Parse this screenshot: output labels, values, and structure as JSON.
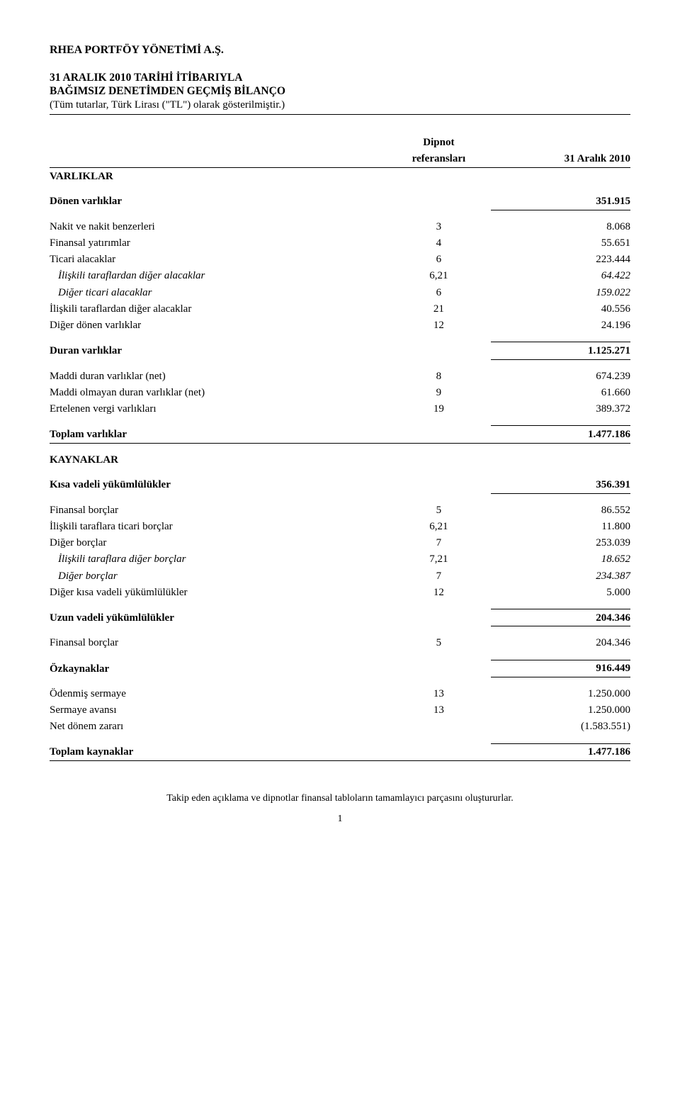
{
  "company": "RHEA PORTFÖY YÖNETİMİ A.Ş.",
  "title_line1": "31 ARALIK 2010 TARİHİ İTİBARIYLA",
  "title_line2": "BAĞIMSIZ DENETİMDEN GEÇMİŞ BİLANÇO",
  "title_sub": "(Tüm tutarlar, Türk Lirası (\"TL\") olarak gösterilmiştir.)",
  "header": {
    "ref_line1": "Dipnot",
    "ref_line2": "referansları",
    "val": "31 Aralık 2010"
  },
  "sections": {
    "varliklar": "VARLIKLAR",
    "donen_varliklar": {
      "label": "Dönen varlıklar",
      "val": "351.915"
    },
    "rows_donen": [
      {
        "label": "Nakit ve nakit benzerleri",
        "ref": "3",
        "val": "8.068",
        "indent": 0
      },
      {
        "label": "Finansal yatırımlar",
        "ref": "4",
        "val": "55.651",
        "indent": 0
      },
      {
        "label": "Ticari alacaklar",
        "ref": "6",
        "val": "223.444",
        "indent": 0
      },
      {
        "label": "İlişkili taraflardan diğer alacaklar",
        "ref": "6,21",
        "val": "64.422",
        "indent": 1,
        "italic": true
      },
      {
        "label": "Diğer ticari alacaklar",
        "ref": "6",
        "val": "159.022",
        "indent": 1,
        "italic": true
      },
      {
        "label": "İlişkili taraflardan diğer alacaklar",
        "ref": "21",
        "val": "40.556",
        "indent": 0
      },
      {
        "label": "Diğer dönen varlıklar",
        "ref": "12",
        "val": "24.196",
        "indent": 0
      }
    ],
    "duran_varliklar": {
      "label": "Duran varlıklar",
      "val": "1.125.271"
    },
    "rows_duran": [
      {
        "label": "Maddi duran varlıklar (net)",
        "ref": "8",
        "val": "674.239"
      },
      {
        "label": "Maddi olmayan duran varlıklar (net)",
        "ref": "9",
        "val": "61.660"
      },
      {
        "label": "Ertelenen vergi varlıkları",
        "ref": "19",
        "val": "389.372"
      }
    ],
    "toplam_varliklar": {
      "label": "Toplam varlıklar",
      "val": "1.477.186"
    },
    "kaynaklar": "KAYNAKLAR",
    "kisa_vadeli": {
      "label": "Kısa vadeli yükümlülükler",
      "val": "356.391"
    },
    "rows_kisa": [
      {
        "label": "Finansal borçlar",
        "ref": "5",
        "val": "86.552",
        "indent": 0
      },
      {
        "label": "İlişkili taraflara ticari borçlar",
        "ref": "6,21",
        "val": "11.800",
        "indent": 0
      },
      {
        "label": "Diğer borçlar",
        "ref": "7",
        "val": "253.039",
        "indent": 0
      },
      {
        "label": "İlişkili taraflara diğer borçlar",
        "ref": "7,21",
        "val": "18.652",
        "indent": 1,
        "italic": true
      },
      {
        "label": "Diğer borçlar",
        "ref": "7",
        "val": "234.387",
        "indent": 1,
        "italic": true
      },
      {
        "label": "Diğer kısa vadeli yükümlülükler",
        "ref": "12",
        "val": "5.000",
        "indent": 0
      }
    ],
    "uzun_vadeli": {
      "label": "Uzun vadeli yükümlülükler",
      "val": "204.346"
    },
    "rows_uzun": [
      {
        "label": "Finansal borçlar",
        "ref": "5",
        "val": "204.346"
      }
    ],
    "ozkaynaklar": {
      "label": "Özkaynaklar",
      "val": "916.449"
    },
    "rows_ozkaynak": [
      {
        "label": "Ödenmiş sermaye",
        "ref": "13",
        "val": "1.250.000"
      },
      {
        "label": "Sermaye avansı",
        "ref": "13",
        "val": "1.250.000"
      },
      {
        "label": "Net dönem zararı",
        "ref": "",
        "val": "(1.583.551)"
      }
    ],
    "toplam_kaynaklar": {
      "label": "Toplam kaynaklar",
      "val": "1.477.186"
    }
  },
  "footer": "Takip eden açıklama ve dipnotlar finansal tabloların tamamlayıcı parçasını oluştururlar.",
  "page_number": "1"
}
